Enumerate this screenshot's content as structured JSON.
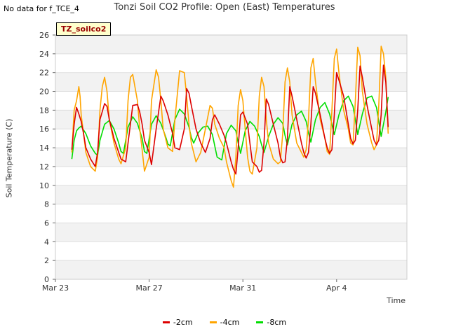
{
  "header": {
    "nodata_text": "No data for f_TCE_4",
    "title": "Tonzi Soil CO2 Profile: Open (East) Temperatures",
    "badge_label": "TZ_soilco2"
  },
  "chart_data": {
    "type": "line",
    "title": "Tonzi Soil CO2 Profile: Open (East) Temperatures",
    "xlabel": "Time",
    "ylabel": "Soil Temperature (C)",
    "xlim": [
      0,
      15
    ],
    "ylim": [
      0,
      26
    ],
    "y_ticks": [
      0,
      2,
      4,
      6,
      8,
      10,
      12,
      14,
      16,
      18,
      20,
      22,
      24,
      26
    ],
    "x_ticks": [
      {
        "x": 0,
        "label": "Mar 23"
      },
      {
        "x": 4,
        "label": "Mar 27"
      },
      {
        "x": 8,
        "label": "Mar 31"
      },
      {
        "x": 12,
        "label": "Apr 4"
      }
    ],
    "grid": true,
    "legend_position": "bottom",
    "series": [
      {
        "name": "-2cm",
        "color": "#dd0000",
        "x": [
          0.7,
          0.8,
          0.9,
          1.0,
          1.1,
          1.2,
          1.3,
          1.5,
          1.7,
          1.8,
          1.9,
          2.1,
          2.2,
          2.3,
          2.5,
          2.7,
          2.8,
          3.0,
          3.1,
          3.3,
          3.5,
          3.6,
          3.7,
          3.8,
          4.0,
          4.1,
          4.3,
          4.5,
          4.6,
          4.8,
          5.0,
          5.1,
          5.3,
          5.5,
          5.6,
          5.7,
          5.8,
          6.0,
          6.2,
          6.4,
          6.6,
          6.7,
          6.8,
          7.0,
          7.2,
          7.3,
          7.5,
          7.6,
          7.7,
          7.8,
          7.9,
          8.0,
          8.2,
          8.3,
          8.4,
          8.6,
          8.7,
          8.8,
          8.9,
          9.0,
          9.1,
          9.3,
          9.5,
          9.6,
          9.7,
          9.8,
          9.9,
          10.0,
          10.1,
          10.3,
          10.5,
          10.6,
          10.7,
          10.8,
          10.9,
          11.0,
          11.1,
          11.3,
          11.5,
          11.6,
          11.7,
          11.8,
          11.9,
          12.0,
          12.1,
          12.3,
          12.5,
          12.6,
          12.7,
          12.8,
          12.9,
          13.0,
          13.1,
          13.3,
          13.5,
          13.6,
          13.7,
          13.8,
          13.9,
          14.0,
          14.1,
          14.2
        ],
        "y": [
          13.8,
          16.5,
          18.3,
          17.6,
          16.8,
          15.5,
          14.0,
          12.8,
          12.0,
          13.5,
          17.0,
          18.7,
          18.4,
          17.0,
          15.0,
          13.5,
          12.8,
          12.5,
          14.5,
          18.5,
          18.6,
          17.8,
          16.5,
          14.8,
          13.5,
          12.2,
          16.0,
          19.5,
          19.0,
          17.5,
          15.5,
          14.0,
          13.8,
          16.0,
          20.3,
          19.8,
          18.5,
          16.0,
          14.5,
          13.5,
          15.0,
          17.0,
          17.5,
          16.5,
          15.3,
          14.5,
          12.5,
          11.7,
          11.2,
          14.0,
          17.5,
          17.8,
          16.5,
          14.5,
          12.5,
          12.0,
          11.4,
          11.6,
          14.5,
          19.2,
          18.6,
          16.5,
          14.5,
          13.0,
          12.4,
          12.5,
          15.0,
          20.5,
          19.5,
          17.0,
          14.5,
          13.5,
          12.9,
          13.5,
          16.5,
          20.5,
          19.8,
          17.5,
          15.0,
          14.0,
          13.4,
          13.8,
          17.5,
          22.0,
          21.2,
          19.5,
          16.5,
          15.0,
          14.4,
          14.8,
          18.0,
          22.7,
          21.5,
          18.5,
          16.0,
          14.8,
          14.3,
          14.8,
          17.5,
          22.8,
          21.0,
          16.2
        ]
      },
      {
        "name": "-4cm",
        "color": "#ffa500",
        "x": [
          0.7,
          0.8,
          0.9,
          1.0,
          1.05,
          1.1,
          1.2,
          1.3,
          1.5,
          1.7,
          1.8,
          1.9,
          2.0,
          2.1,
          2.2,
          2.3,
          2.5,
          2.7,
          2.8,
          3.0,
          3.1,
          3.2,
          3.3,
          3.5,
          3.6,
          3.7,
          3.8,
          4.0,
          4.1,
          4.3,
          4.4,
          4.5,
          4.6,
          4.8,
          5.0,
          5.1,
          5.3,
          5.5,
          5.6,
          5.7,
          5.8,
          6.0,
          6.2,
          6.4,
          6.6,
          6.7,
          6.8,
          7.0,
          7.2,
          7.3,
          7.5,
          7.6,
          7.7,
          7.8,
          7.9,
          8.0,
          8.1,
          8.2,
          8.3,
          8.4,
          8.6,
          8.7,
          8.8,
          8.9,
          9.0,
          9.1,
          9.3,
          9.5,
          9.6,
          9.7,
          9.8,
          9.9,
          10.0,
          10.1,
          10.3,
          10.5,
          10.6,
          10.7,
          10.8,
          10.9,
          11.0,
          11.1,
          11.3,
          11.5,
          11.6,
          11.7,
          11.8,
          11.9,
          12.0,
          12.1,
          12.3,
          12.5,
          12.6,
          12.7,
          12.8,
          12.9,
          13.0,
          13.1,
          13.3,
          13.5,
          13.6,
          13.7,
          13.8,
          13.9,
          14.0,
          14.1,
          14.2
        ],
        "y": [
          13.5,
          18.0,
          19.0,
          20.5,
          19.5,
          17.5,
          15.5,
          13.5,
          12.0,
          11.5,
          13.0,
          18.0,
          20.5,
          21.5,
          20.0,
          17.0,
          14.5,
          12.8,
          12.3,
          14.0,
          19.0,
          21.5,
          21.8,
          19.0,
          16.0,
          13.8,
          11.5,
          13.0,
          19.0,
          22.3,
          21.5,
          19.0,
          16.0,
          14.0,
          13.6,
          17.0,
          22.2,
          22.0,
          19.5,
          16.5,
          14.5,
          12.5,
          13.5,
          16.0,
          18.5,
          18.2,
          16.5,
          15.0,
          14.0,
          12.5,
          10.5,
          9.8,
          13.0,
          18.5,
          20.2,
          19.0,
          16.0,
          13.0,
          11.5,
          11.2,
          14.0,
          19.5,
          21.5,
          20.5,
          17.0,
          14.5,
          12.8,
          12.3,
          12.5,
          15.5,
          21.0,
          22.5,
          21.0,
          17.5,
          14.5,
          13.5,
          13.0,
          13.8,
          17.0,
          22.5,
          23.5,
          21.0,
          17.0,
          15.0,
          13.6,
          13.3,
          18.0,
          23.5,
          24.5,
          22.0,
          18.0,
          16.0,
          14.5,
          14.3,
          19.0,
          24.7,
          23.8,
          20.0,
          16.5,
          14.5,
          13.8,
          14.3,
          18.5,
          24.8,
          24.0,
          21.5,
          15.5
        ]
      },
      {
        "name": "-8cm",
        "color": "#00dd00",
        "x": [
          0.7,
          0.8,
          0.9,
          1.0,
          1.1,
          1.3,
          1.5,
          1.7,
          1.8,
          1.9,
          2.1,
          2.3,
          2.5,
          2.7,
          2.8,
          2.9,
          3.1,
          3.3,
          3.5,
          3.7,
          3.8,
          3.9,
          4.1,
          4.3,
          4.5,
          4.7,
          4.8,
          4.9,
          5.1,
          5.3,
          5.5,
          5.7,
          5.8,
          5.9,
          6.1,
          6.3,
          6.5,
          6.7,
          6.8,
          6.9,
          7.1,
          7.3,
          7.5,
          7.7,
          7.8,
          7.9,
          8.1,
          8.3,
          8.5,
          8.7,
          8.8,
          8.9,
          9.1,
          9.3,
          9.5,
          9.7,
          9.8,
          9.9,
          10.1,
          10.3,
          10.5,
          10.7,
          10.8,
          10.9,
          11.1,
          11.3,
          11.5,
          11.7,
          11.8,
          11.9,
          12.1,
          12.3,
          12.5,
          12.7,
          12.8,
          12.9,
          13.1,
          13.3,
          13.5,
          13.7,
          13.8,
          13.9,
          14.1,
          14.2
        ],
        "y": [
          12.8,
          14.8,
          15.8,
          16.1,
          16.3,
          15.5,
          14.2,
          13.4,
          13.2,
          14.8,
          16.5,
          16.9,
          16.0,
          14.5,
          13.6,
          13.4,
          16.2,
          17.3,
          16.6,
          15.0,
          13.6,
          13.4,
          16.5,
          17.4,
          16.6,
          15.2,
          14.4,
          14.2,
          17.0,
          18.1,
          17.6,
          16.2,
          15.1,
          14.5,
          15.6,
          16.2,
          16.3,
          15.4,
          14.2,
          13.0,
          12.7,
          15.5,
          16.4,
          15.8,
          14.5,
          13.4,
          15.8,
          16.8,
          16.3,
          15.2,
          14.3,
          13.5,
          15.2,
          16.5,
          17.2,
          16.6,
          15.3,
          14.3,
          16.5,
          17.5,
          17.9,
          16.8,
          15.6,
          14.6,
          17.0,
          18.3,
          18.8,
          17.6,
          16.5,
          15.4,
          17.5,
          19.0,
          19.5,
          18.4,
          17.0,
          15.4,
          17.6,
          19.3,
          19.5,
          18.3,
          16.8,
          15.2,
          17.8,
          19.4
        ]
      }
    ]
  }
}
